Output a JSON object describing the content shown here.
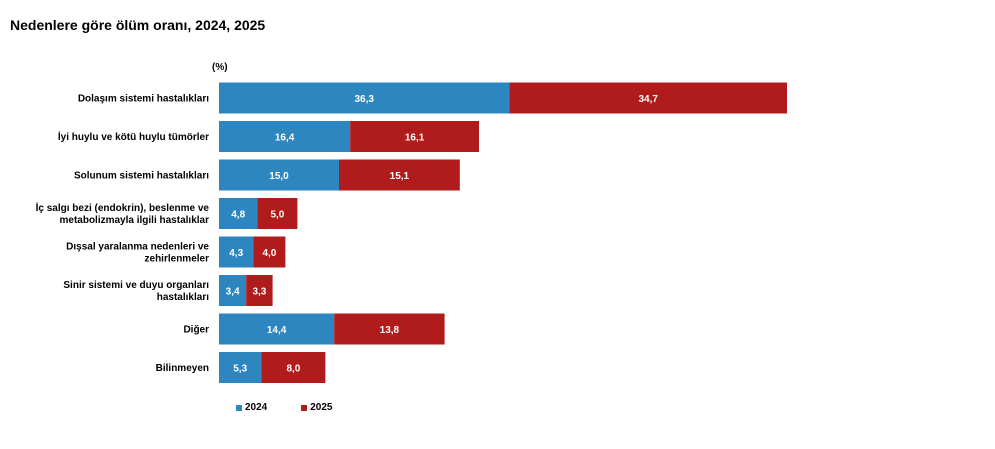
{
  "chart_data": {
    "type": "bar",
    "orientation": "horizontal",
    "stacked": true,
    "title": "Nedenlere göre ölüm oranı, 2024, 2025",
    "unit_label": "(%)",
    "categories": [
      [
        "Dolaşım sistemi hastalıkları"
      ],
      [
        "İyi huylu ve kötü huylu tümörler"
      ],
      [
        "Solunum sistemi hastalıkları"
      ],
      [
        "İç salgı bezi (endokrin), beslenme ve",
        "metabolizmayla ilgili hastalıklar"
      ],
      [
        "Dışsal yaralanma nedenleri ve",
        "zehirlenmeler"
      ],
      [
        "Sinir sistemi ve duyu organları",
        "hastalıkları"
      ],
      [
        "Diğer"
      ],
      [
        "Bilinmeyen"
      ]
    ],
    "series": [
      {
        "name": "2024",
        "color": "#2E86C1",
        "values": [
          36.3,
          16.4,
          15.0,
          4.8,
          4.3,
          3.4,
          14.4,
          5.3
        ],
        "labels": [
          "36,3",
          "16,4",
          "15,0",
          "4,8",
          "4,3",
          "3,4",
          "14,4",
          "5,3"
        ]
      },
      {
        "name": "2025",
        "color": "#B01B1B",
        "values": [
          34.7,
          16.1,
          15.1,
          5.0,
          4.0,
          3.3,
          13.8,
          8.0
        ],
        "labels": [
          "34,7",
          "16,1",
          "15,1",
          "5,0",
          "4,0",
          "3,3",
          "13,8",
          "8,0"
        ]
      }
    ],
    "xlim": [
      0,
      71
    ],
    "grid": false,
    "legend": "bottom-left"
  }
}
